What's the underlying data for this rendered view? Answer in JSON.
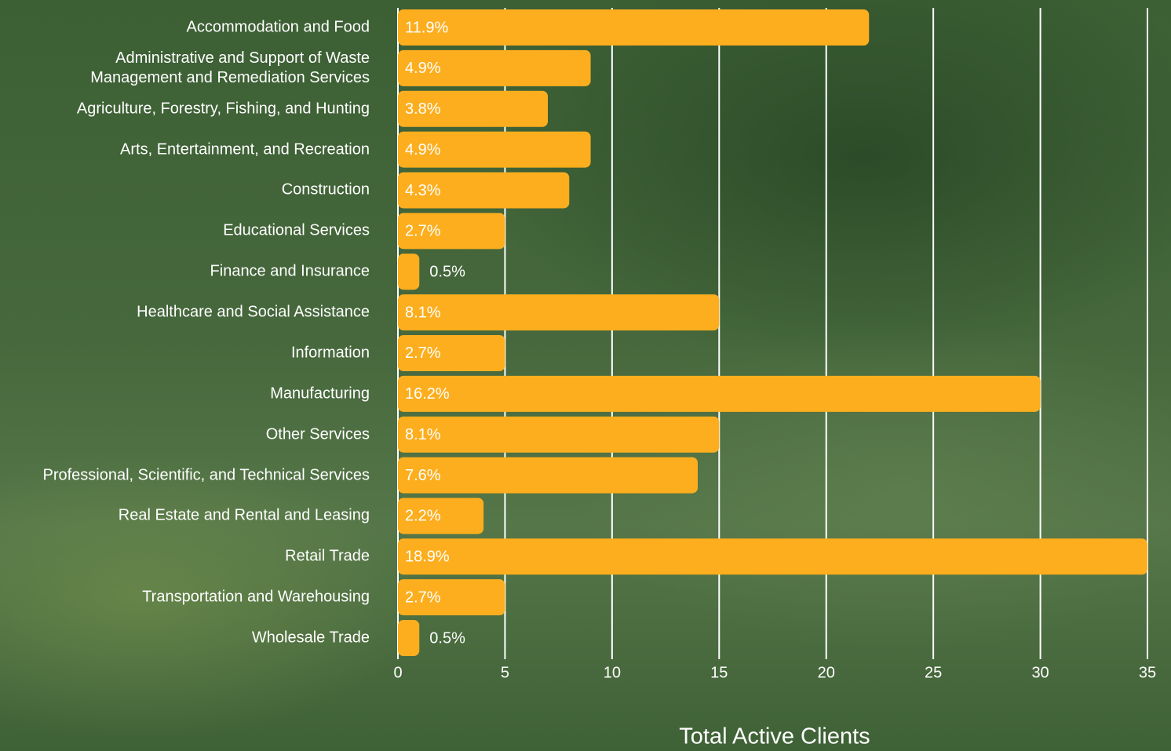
{
  "chart_data": {
    "type": "hbar",
    "categories": [
      "Accommodation and Food",
      "Administrative and Support of Waste\nManagement and Remediation Services",
      "Agriculture, Forestry, Fishing, and Hunting",
      "Arts, Entertainment, and Recreation",
      "Construction",
      "Educational Services",
      "Finance and Insurance",
      "Healthcare and Social Assistance",
      "Information",
      "Manufacturing",
      "Other Services",
      "Professional, Scientific, and Technical Services",
      "Real Estate and Rental and Leasing",
      "Retail Trade",
      "Transportation and Warehousing",
      "Wholesale Trade"
    ],
    "values": [
      22,
      9,
      7,
      9,
      8,
      5,
      1,
      15,
      5,
      30,
      15,
      14,
      4,
      35,
      5,
      1
    ],
    "value_labels": [
      "11.9%",
      "4.9%",
      "3.8%",
      "4.9%",
      "4.3%",
      "2.7%",
      "0.5%",
      "8.1%",
      "2.7%",
      "16.2%",
      "8.1%",
      "7.6%",
      "2.2%",
      "18.9%",
      "2.7%",
      "0.5%"
    ],
    "color": "#fcae1e",
    "xlim": [
      0,
      35
    ],
    "xticks": [
      0,
      5,
      10,
      15,
      20,
      25,
      30,
      35
    ],
    "grid": true,
    "xlabel": "Total Active Clients"
  }
}
